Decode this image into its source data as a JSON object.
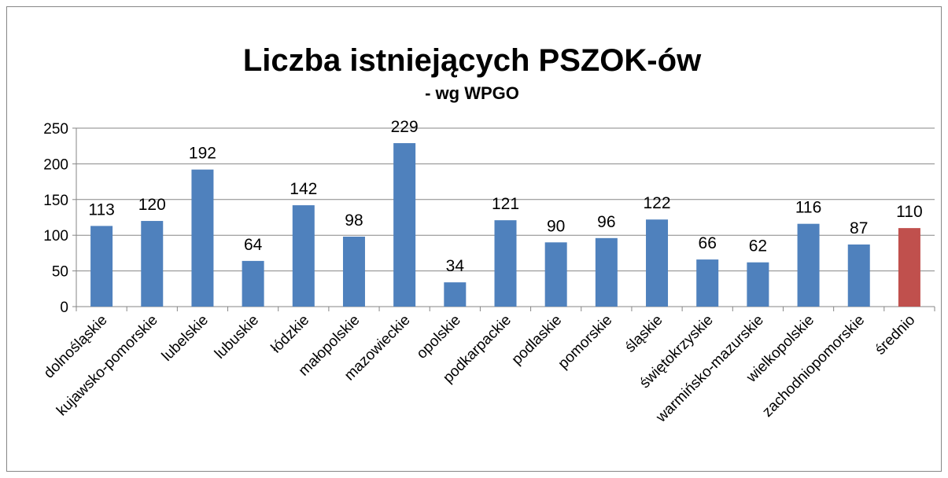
{
  "chart_data": {
    "type": "bar",
    "title": "Liczba istniejących PSZOK-ów",
    "subtitle": "- wg WPGO",
    "categories": [
      "dolnośląskie",
      "kujawsko-pomorskie",
      "lubelskie",
      "lubuskie",
      "łódzkie",
      "małopolskie",
      "mazowieckie",
      "opolskie",
      "podkarpackie",
      "podlaskie",
      "pomorskie",
      "śląskie",
      "świętokrzyskie",
      "warmińsko-mazurskie",
      "wielkopolskie",
      "zachodniopomorskie",
      "średnio"
    ],
    "values": [
      113,
      120,
      192,
      64,
      142,
      98,
      229,
      34,
      121,
      90,
      96,
      122,
      66,
      62,
      116,
      87,
      110
    ],
    "colors": [
      "#4f81bd",
      "#4f81bd",
      "#4f81bd",
      "#4f81bd",
      "#4f81bd",
      "#4f81bd",
      "#4f81bd",
      "#4f81bd",
      "#4f81bd",
      "#4f81bd",
      "#4f81bd",
      "#4f81bd",
      "#4f81bd",
      "#4f81bd",
      "#4f81bd",
      "#4f81bd",
      "#c0504d"
    ],
    "ylim": [
      0,
      250
    ],
    "yticks": [
      0,
      50,
      100,
      150,
      200,
      250
    ],
    "grid": true
  }
}
